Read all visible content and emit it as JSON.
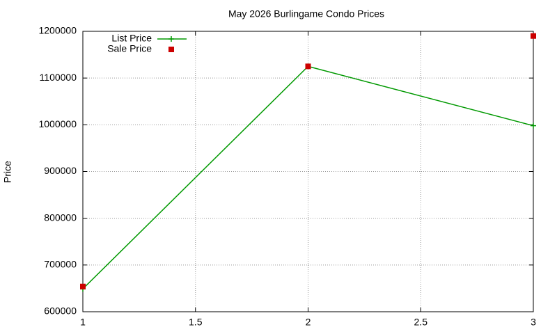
{
  "chart_data": {
    "type": "line",
    "title": "May 2026 Burlingame Condo Prices",
    "y_label": "Price",
    "x": [
      1,
      2,
      3
    ],
    "series": [
      {
        "name": "List Price",
        "color": "#009900",
        "values": [
          649000,
          1125000,
          998000
        ],
        "marker": "plus",
        "line": true
      },
      {
        "name": "Sale Price",
        "color": "#cc0000",
        "values": [
          654000,
          1125000,
          1190000
        ],
        "marker": "square",
        "line": false
      }
    ],
    "xlim": [
      1,
      3
    ],
    "xticks": [
      1,
      1.5,
      2,
      2.5,
      3
    ],
    "ylim": [
      600000,
      1200000
    ],
    "yticks": [
      600000,
      700000,
      800000,
      900000,
      1000000,
      1100000,
      1200000
    ],
    "grid": true,
    "legend": "top-left"
  }
}
